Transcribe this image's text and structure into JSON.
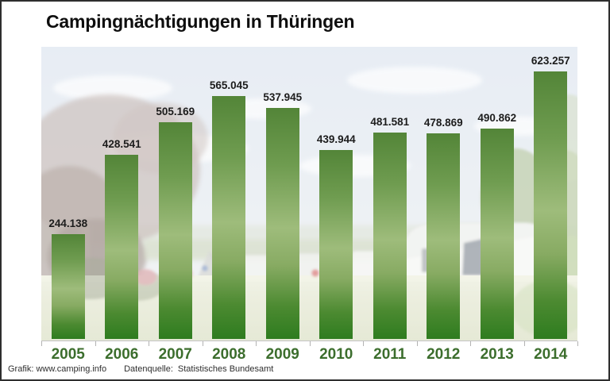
{
  "title": "Campingnächtigungen in Thüringen",
  "footer": {
    "grafik_credit": "Grafik: www.camping.info",
    "source_label": "Datenquelle:",
    "source_value": "Statistisches Bundesamt"
  },
  "background_scene": "faded-campsite-photo-with-caravans-trees-and-lawn",
  "chart_data": {
    "type": "bar",
    "title": "Campingnächtigungen in Thüringen",
    "xlabel": "",
    "ylabel": "",
    "categories": [
      "2005",
      "2006",
      "2007",
      "2008",
      "2009",
      "2010",
      "2011",
      "2012",
      "2013",
      "2014"
    ],
    "values": [
      244138,
      428541,
      505169,
      565045,
      537945,
      439944,
      481581,
      478869,
      490862,
      623257
    ],
    "value_labels": [
      "244.138",
      "428.541",
      "505.169",
      "565.045",
      "537.945",
      "439.944",
      "481.581",
      "478.869",
      "490.862",
      "623.257"
    ],
    "ylim": [
      0,
      623257
    ],
    "grid": false,
    "legend": false,
    "bar_gradient": [
      "#538538",
      "#9ebc7b",
      "#2e7c1f"
    ],
    "value_label_color": "#1c1c1c",
    "year_label_color": "#3c6e2d",
    "axis_color": "#c4c4c4"
  }
}
